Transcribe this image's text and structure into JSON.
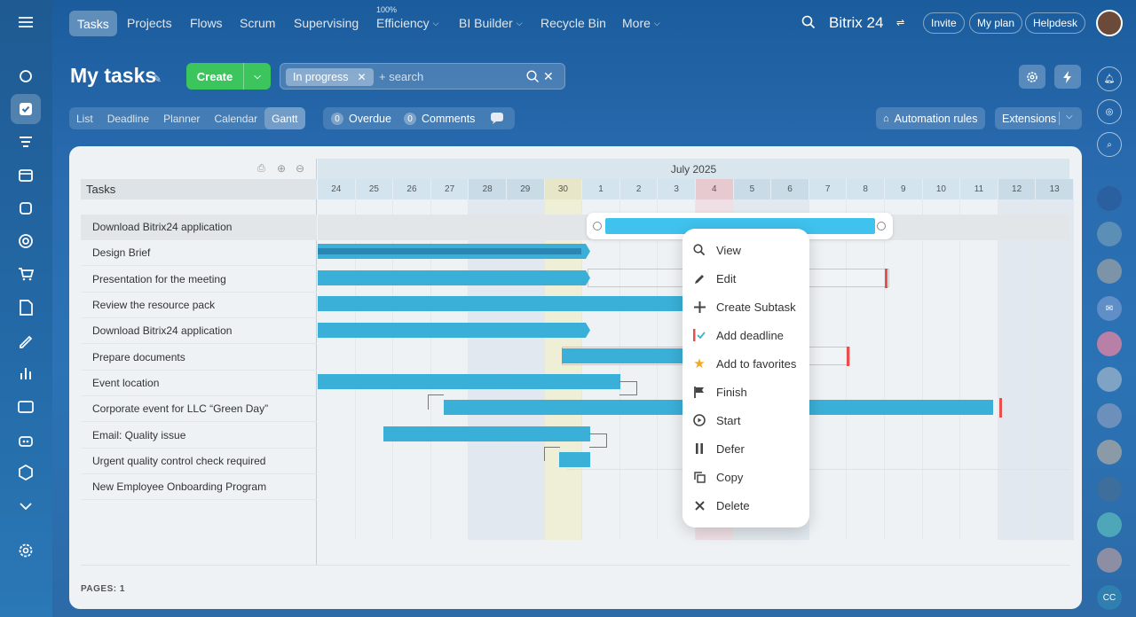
{
  "topbar": {
    "nav": [
      "Tasks",
      "Projects",
      "Flows",
      "Scrum",
      "Supervising",
      "Efficiency",
      "BI Builder",
      "Recycle Bin",
      "More"
    ],
    "efficiency_badge": "100%",
    "brand": "Bitrix 24",
    "invite": "Invite",
    "my_plan": "My plan",
    "helpdesk": "Helpdesk"
  },
  "page": {
    "title": "My tasks",
    "create_label": "Create",
    "filter_chip": "In progress",
    "search_placeholder": "+ search"
  },
  "views": [
    "List",
    "Deadline",
    "Planner",
    "Calendar",
    "Gantt"
  ],
  "counters": {
    "overdue_count": "0",
    "overdue_label": "Overdue",
    "comments_count": "0",
    "comments_label": "Comments"
  },
  "automation_rules": "Automation rules",
  "extensions": "Extensions",
  "gantt": {
    "tasks_header": "Tasks",
    "month": "July 2025",
    "days": [
      "24",
      "25",
      "26",
      "27",
      "28",
      "29",
      "30",
      "1",
      "2",
      "3",
      "4",
      "5",
      "6",
      "7",
      "8",
      "9",
      "10",
      "11",
      "12",
      "13"
    ],
    "tasks": [
      "Download Bitrix24 application",
      "Design Brief",
      "Presentation for the meeting",
      "Review the resource pack",
      "Download Bitrix24 application",
      "Prepare documents",
      "Event location",
      "Corporate event for LLC “Green Day”",
      "Email: Quality issue",
      "Urgent quality control check required",
      "New Employee Onboarding Program"
    ],
    "pages_label": "PAGES:",
    "pages_value": "1"
  },
  "context_menu": [
    "View",
    "Edit",
    "Create Subtask",
    "Add deadline",
    "Add to favorites",
    "Finish",
    "Start",
    "Defer",
    "Copy",
    "Delete"
  ],
  "colors": {
    "accent": "#3ab0d8",
    "create": "#3bc55c",
    "deadline": "#e8504d"
  },
  "avatar_initials": "CC"
}
